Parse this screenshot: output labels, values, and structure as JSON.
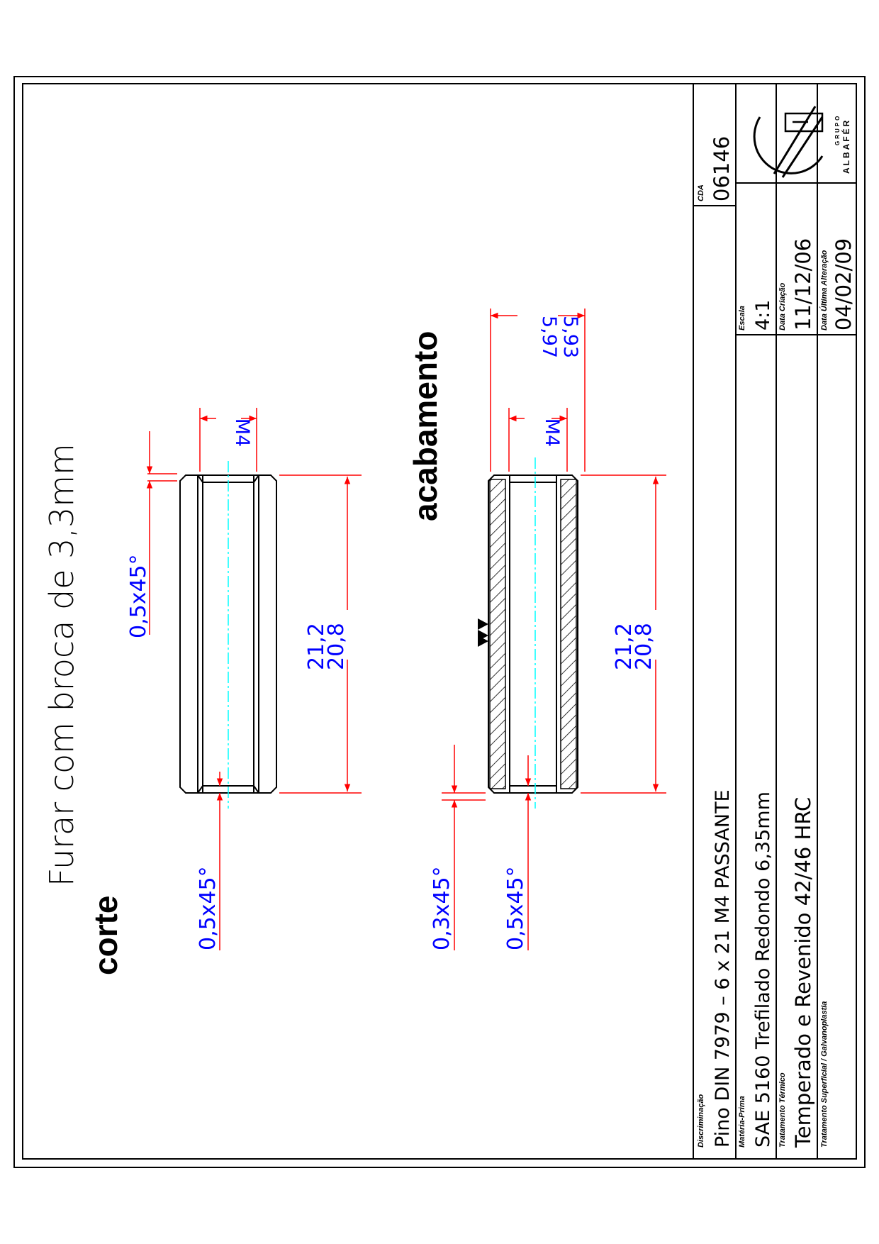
{
  "drawing": {
    "note": "Furar com broca de 3,3mm",
    "views": {
      "cut": {
        "title": "corte",
        "chamfer_top": "0,5x45°",
        "chamfer_bottom": "0,5x45°",
        "thread": "M4",
        "length_upper": "21,2",
        "length_lower": "20,8"
      },
      "finish": {
        "title": "acabamento",
        "chamfer_outer": "0,3x45°",
        "chamfer_inner": "0,5x45°",
        "thread": "M4",
        "diameter_upper": "5,97",
        "diameter_lower": "5,93",
        "length_upper": "21,2",
        "length_lower": "20,8",
        "surface_symbol": "finish-triangles-icon"
      }
    }
  },
  "title_block": {
    "description_label": "Discriminação",
    "description": "Pino DIN 7979 – 6 x 21 M4 PASSANTE",
    "material_label": "Matéria-Prima",
    "material": "SAE 5160 Trefilado Redondo 6,35mm",
    "heat_label": "Tratamento Térmico",
    "heat": "Temperado e Revenido 42/46 HRC",
    "surface_label": "Tratamento Superficial / Galvanoplastia",
    "code_label": "CDA",
    "code": "06146",
    "scale_label": "Escala",
    "scale": "4:1",
    "created_label": "Data Criação",
    "created": "11/12/06",
    "changed_label": "Data Última Alteração",
    "changed": "04/02/09",
    "logo_text": "ALBAFÉR",
    "logo_subtext": "GRUPO"
  },
  "colors": {
    "outline": "#000000",
    "dimension": "#ff0000",
    "dimension_text": "#0000ff",
    "centerline": "#00ffff"
  }
}
